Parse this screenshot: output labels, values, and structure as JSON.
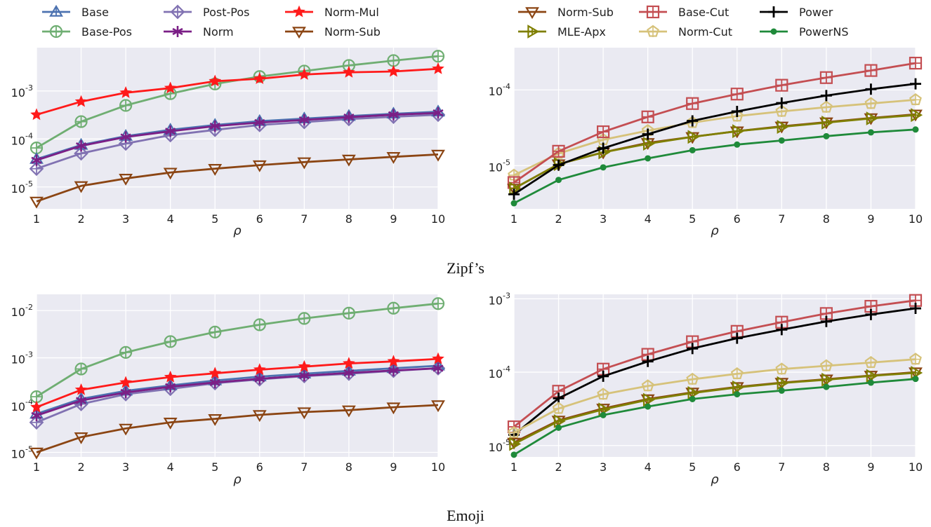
{
  "legends": {
    "left": [
      "Base",
      "Base-Pos",
      "Post-Pos",
      "Norm",
      "Norm-Mul",
      "Norm-Sub"
    ],
    "right": [
      "Norm-Sub",
      "MLE-Apx",
      "Base-Cut",
      "Norm-Cut",
      "Power",
      "PowerNS"
    ]
  },
  "styles": {
    "Base": {
      "color": "#4c72b0",
      "marker": "triangle-up"
    },
    "Base-Pos": {
      "color": "#6fae72",
      "marker": "circle-plus"
    },
    "Post-Pos": {
      "color": "#8172b2",
      "marker": "diamond-plus"
    },
    "Norm": {
      "color": "#7b1f86",
      "marker": "asterisk"
    },
    "Norm-Mul": {
      "color": "#ff1a1a",
      "marker": "star"
    },
    "Norm-Sub": {
      "color": "#8b4513",
      "marker": "triangle-down"
    },
    "MLE-Apx": {
      "color": "#7f7f00",
      "marker": "triangle-right"
    },
    "Base-Cut": {
      "color": "#c44e52",
      "marker": "square-plus"
    },
    "Norm-Cut": {
      "color": "#d6c27a",
      "marker": "pentagon-plus"
    },
    "Power": {
      "color": "#000000",
      "marker": "plus"
    },
    "PowerNS": {
      "color": "#1f8a3a",
      "marker": "dot"
    }
  },
  "captions": {
    "top": "Zipf’s",
    "bottom": "Emoji"
  },
  "chart_data": [
    {
      "id": "zipf-left",
      "type": "line",
      "dataset": "Zipf’s",
      "xlabel": "ρ",
      "yscale": "log",
      "ylim": [
        3.5e-06,
        0.008
      ],
      "x": [
        1,
        2,
        3,
        4,
        5,
        6,
        7,
        8,
        9,
        10
      ],
      "yticks": [
        {
          "base": "10",
          "exp": "-5",
          "value": 1e-05
        },
        {
          "base": "10",
          "exp": "-4",
          "value": 0.0001
        },
        {
          "base": "10",
          "exp": "-3",
          "value": 0.001
        }
      ],
      "series": [
        {
          "name": "Base-Pos",
          "values": [
            6.5e-05,
            0.00023,
            0.0005,
            0.00088,
            0.0014,
            0.002,
            0.0026,
            0.0034,
            0.0043,
            0.0053
          ]
        },
        {
          "name": "Post-Pos",
          "values": [
            2.4e-05,
            5e-05,
            8e-05,
            0.00012,
            0.000155,
            0.000195,
            0.000225,
            0.00026,
            0.00029,
            0.00032
          ]
        },
        {
          "name": "Base",
          "values": [
            3.8e-05,
            7.5e-05,
            0.000115,
            0.000155,
            0.000195,
            0.000235,
            0.000265,
            0.0003,
            0.000335,
            0.00037
          ]
        },
        {
          "name": "Norm",
          "values": [
            3.6e-05,
            7.2e-05,
            0.00011,
            0.000145,
            0.000185,
            0.00022,
            0.00025,
            0.000285,
            0.00032,
            0.00035
          ]
        },
        {
          "name": "Norm-Mul",
          "values": [
            0.00032,
            0.0006,
            0.00092,
            0.00115,
            0.0016,
            0.0018,
            0.0022,
            0.00245,
            0.00255,
            0.0029
          ]
        },
        {
          "name": "Norm-Sub",
          "values": [
            5e-06,
            1.05e-05,
            1.5e-05,
            2e-05,
            2.4e-05,
            2.85e-05,
            3.3e-05,
            3.75e-05,
            4.25e-05,
            4.75e-05
          ]
        }
      ]
    },
    {
      "id": "zipf-right",
      "type": "line",
      "dataset": "Zipf’s",
      "xlabel": "ρ",
      "yscale": "log",
      "ylim": [
        2.7e-06,
        0.00036
      ],
      "x": [
        1,
        2,
        3,
        4,
        5,
        6,
        7,
        8,
        9,
        10
      ],
      "yticks": [
        {
          "base": "10",
          "exp": "-5",
          "value": 1e-05
        },
        {
          "base": "10",
          "exp": "-4",
          "value": 0.0001
        }
      ],
      "series": [
        {
          "name": "Norm-Cut",
          "values": [
            7.5e-06,
            1.45e-05,
            2.2e-05,
            2.9e-05,
            3.7e-05,
            4.5e-05,
            5.2e-05,
            5.9e-05,
            6.6e-05,
            7.4e-05
          ]
        },
        {
          "name": "Base-Cut",
          "values": [
            6e-06,
            1.55e-05,
            2.8e-05,
            4.4e-05,
            6.6e-05,
            8.8e-05,
            0.000115,
            0.000145,
            0.00018,
            0.000225
          ]
        },
        {
          "name": "Norm-Sub",
          "values": [
            5e-06,
            1.05e-05,
            1.5e-05,
            2e-05,
            2.4e-05,
            2.85e-05,
            3.3e-05,
            3.75e-05,
            4.25e-05,
            4.75e-05
          ]
        },
        {
          "name": "MLE-Apx",
          "values": [
            5e-06,
            1.05e-05,
            1.5e-05,
            1.95e-05,
            2.4e-05,
            2.85e-05,
            3.25e-05,
            3.7e-05,
            4.2e-05,
            4.65e-05
          ]
        },
        {
          "name": "Power",
          "values": [
            4.2e-06,
            1.02e-05,
            1.7e-05,
            2.6e-05,
            3.9e-05,
            5.2e-05,
            6.7e-05,
            8.4e-05,
            0.000102,
            0.00012
          ]
        },
        {
          "name": "PowerNS",
          "values": [
            3.2e-06,
            6.5e-06,
            9.5e-06,
            1.25e-05,
            1.6e-05,
            1.9e-05,
            2.15e-05,
            2.45e-05,
            2.75e-05,
            3e-05
          ]
        }
      ]
    },
    {
      "id": "emoji-left",
      "type": "line",
      "dataset": "Emoji",
      "xlabel": "ρ",
      "yscale": "log",
      "ylim": [
        8e-06,
        0.022
      ],
      "x": [
        1,
        2,
        3,
        4,
        5,
        6,
        7,
        8,
        9,
        10
      ],
      "yticks": [
        {
          "base": "10",
          "exp": "-5",
          "value": 1e-05
        },
        {
          "base": "10",
          "exp": "-4",
          "value": 0.0001
        },
        {
          "base": "10",
          "exp": "-3",
          "value": 0.001
        },
        {
          "base": "10",
          "exp": "-2",
          "value": 0.01
        }
      ],
      "series": [
        {
          "name": "Base-Pos",
          "values": [
            0.00015,
            0.00058,
            0.0013,
            0.0022,
            0.0035,
            0.005,
            0.0068,
            0.0088,
            0.0112,
            0.014
          ]
        },
        {
          "name": "Post-Pos",
          "values": [
            4.3e-05,
            0.000105,
            0.00017,
            0.00022,
            0.00029,
            0.00035,
            0.00041,
            0.00046,
            0.00053,
            0.0006
          ]
        },
        {
          "name": "Base",
          "values": [
            6.5e-05,
            0.000135,
            0.0002,
            0.00026,
            0.00033,
            0.0004,
            0.00046,
            0.00053,
            0.0006,
            0.00068
          ]
        },
        {
          "name": "Norm",
          "values": [
            6e-05,
            0.000125,
            0.000185,
            0.000245,
            0.0003,
            0.00036,
            0.00042,
            0.00048,
            0.00054,
            0.0006
          ]
        },
        {
          "name": "Norm-Mul",
          "values": [
            9e-05,
            0.00021,
            0.0003,
            0.00039,
            0.00047,
            0.00056,
            0.00065,
            0.00076,
            0.00084,
            0.00095
          ]
        },
        {
          "name": "Norm-Sub",
          "values": [
            1e-05,
            2.1e-05,
            3.2e-05,
            4.3e-05,
            5.1e-05,
            6.2e-05,
            7.1e-05,
            7.8e-05,
            9e-05,
            0.0001
          ]
        }
      ]
    },
    {
      "id": "emoji-right",
      "type": "line",
      "dataset": "Emoji",
      "xlabel": "ρ",
      "yscale": "log",
      "ylim": [
        7e-06,
        0.00115
      ],
      "x": [
        1,
        2,
        3,
        4,
        5,
        6,
        7,
        8,
        9,
        10
      ],
      "yticks": [
        {
          "base": "10",
          "exp": "-5",
          "value": 1e-05
        },
        {
          "base": "10",
          "exp": "-4",
          "value": 0.0001
        },
        {
          "base": "10",
          "exp": "-3",
          "value": 0.001
        }
      ],
      "series": [
        {
          "name": "Base-Cut",
          "values": [
            1.8e-05,
            5.5e-05,
            0.00011,
            0.000175,
            0.00026,
            0.00036,
            0.00048,
            0.00063,
            0.00079,
            0.00095
          ]
        },
        {
          "name": "Power",
          "values": [
            1.4e-05,
            4.4e-05,
            8.8e-05,
            0.00014,
            0.00021,
            0.00029,
            0.00038,
            0.00049,
            0.00061,
            0.00074
          ]
        },
        {
          "name": "Norm-Cut",
          "values": [
            1.5e-05,
            3.2e-05,
            5e-05,
            6.5e-05,
            8e-05,
            9.5e-05,
            0.00011,
            0.000122,
            0.000135,
            0.00015
          ]
        },
        {
          "name": "Norm-Sub",
          "values": [
            1.1e-05,
            2.2e-05,
            3.2e-05,
            4.3e-05,
            5.3e-05,
            6.3e-05,
            7.2e-05,
            8e-05,
            9e-05,
            0.0001
          ]
        },
        {
          "name": "MLE-Apx",
          "values": [
            1.05e-05,
            2.15e-05,
            3.1e-05,
            4.2e-05,
            5.2e-05,
            6.2e-05,
            7.1e-05,
            7.9e-05,
            8.9e-05,
            9.8e-05
          ]
        },
        {
          "name": "PowerNS",
          "values": [
            7.5e-06,
            1.75e-05,
            2.6e-05,
            3.4e-05,
            4.3e-05,
            5e-05,
            5.6e-05,
            6.3e-05,
            7.2e-05,
            8.1e-05
          ]
        }
      ]
    }
  ]
}
